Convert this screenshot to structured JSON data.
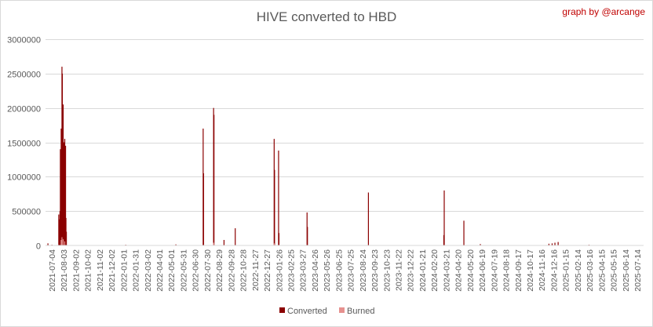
{
  "chart_data": {
    "type": "bar",
    "title": "HIVE converted to HBD",
    "credit": "graph by @arcange",
    "xlabel": "",
    "ylabel": "",
    "ylim": [
      0,
      3000000
    ],
    "yticks": [
      "0",
      "500000",
      "1000000",
      "1500000",
      "2000000",
      "2500000",
      "3000000"
    ],
    "ytick_values": [
      0,
      500000,
      1000000,
      1500000,
      2000000,
      2500000,
      3000000
    ],
    "x_start": "2021-07-04",
    "x_end": "2025-08-03",
    "x_tick_labels": [
      "2021-07-04",
      "2021-08-03",
      "2021-09-02",
      "2021-10-02",
      "2021-11-02",
      "2021-12-02",
      "2022-01-01",
      "2022-01-31",
      "2022-03-02",
      "2022-04-01",
      "2022-05-01",
      "2022-05-31",
      "2022-06-30",
      "2022-07-30",
      "2022-08-29",
      "2022-09-28",
      "2022-10-28",
      "2022-11-27",
      "2022-12-27",
      "2023-01-26",
      "2023-02-25",
      "2023-03-27",
      "2023-04-26",
      "2023-05-26",
      "2023-06-25",
      "2023-07-25",
      "2023-08-24",
      "2023-09-23",
      "2023-10-23",
      "2023-11-22",
      "2023-12-22",
      "2024-01-21",
      "2024-02-20",
      "2024-03-21",
      "2024-04-20",
      "2024-05-20",
      "2024-06-19",
      "2024-07-19",
      "2024-08-18",
      "2024-09-17",
      "2024-10-17",
      "2024-11-16",
      "2024-12-16",
      "2025-01-15",
      "2025-02-14",
      "2025-03-16",
      "2025-04-15",
      "2025-05-15",
      "2025-06-14",
      "2025-07-14"
    ],
    "grid": true,
    "legend_position": "bottom",
    "series": [
      {
        "name": "Converted",
        "color": "#8b0000",
        "points": [
          [
            "2021-07-10",
            30000
          ],
          [
            "2021-07-20",
            10000
          ],
          [
            "2021-08-06",
            450000
          ],
          [
            "2021-08-07",
            300000
          ],
          [
            "2021-08-08",
            380000
          ],
          [
            "2021-08-09",
            500000
          ],
          [
            "2021-08-10",
            1400000
          ],
          [
            "2021-08-11",
            900000
          ],
          [
            "2021-08-12",
            1700000
          ],
          [
            "2021-08-13",
            1500000
          ],
          [
            "2021-08-14",
            2600000
          ],
          [
            "2021-08-15",
            2500000
          ],
          [
            "2021-08-16",
            1900000
          ],
          [
            "2021-08-17",
            2050000
          ],
          [
            "2021-08-18",
            1200000
          ],
          [
            "2021-08-19",
            1500000
          ],
          [
            "2021-08-20",
            700000
          ],
          [
            "2021-08-21",
            1550000
          ],
          [
            "2021-08-22",
            900000
          ],
          [
            "2021-08-23",
            1450000
          ],
          [
            "2021-08-24",
            400000
          ],
          [
            "2021-08-25",
            200000
          ],
          [
            "2022-01-20",
            10000
          ],
          [
            "2022-05-25",
            15000
          ],
          [
            "2022-08-01",
            1700000
          ],
          [
            "2022-08-02",
            1050000
          ],
          [
            "2022-08-27",
            2000000
          ],
          [
            "2022-08-28",
            1900000
          ],
          [
            "2022-09-22",
            80000
          ],
          [
            "2022-10-20",
            250000
          ],
          [
            "2023-01-25",
            1550000
          ],
          [
            "2023-01-26",
            1100000
          ],
          [
            "2023-02-05",
            1380000
          ],
          [
            "2023-02-06",
            180000
          ],
          [
            "2023-04-17",
            480000
          ],
          [
            "2023-04-18",
            270000
          ],
          [
            "2023-09-17",
            770000
          ],
          [
            "2024-03-23",
            150000
          ],
          [
            "2024-03-24",
            800000
          ],
          [
            "2024-05-12",
            360000
          ],
          [
            "2024-06-22",
            20000
          ],
          [
            "2024-12-10",
            25000
          ],
          [
            "2024-12-18",
            30000
          ],
          [
            "2024-12-25",
            40000
          ],
          [
            "2025-01-02",
            50000
          ],
          [
            "2025-03-20",
            10000
          ]
        ]
      },
      {
        "name": "Burned",
        "color": "#e6918f",
        "points": [
          [
            "2021-08-12",
            80000
          ],
          [
            "2021-08-14",
            120000
          ],
          [
            "2021-08-17",
            90000
          ],
          [
            "2021-08-21",
            60000
          ],
          [
            "2022-08-27",
            40000
          ],
          [
            "2023-01-25",
            30000
          ]
        ]
      }
    ]
  }
}
